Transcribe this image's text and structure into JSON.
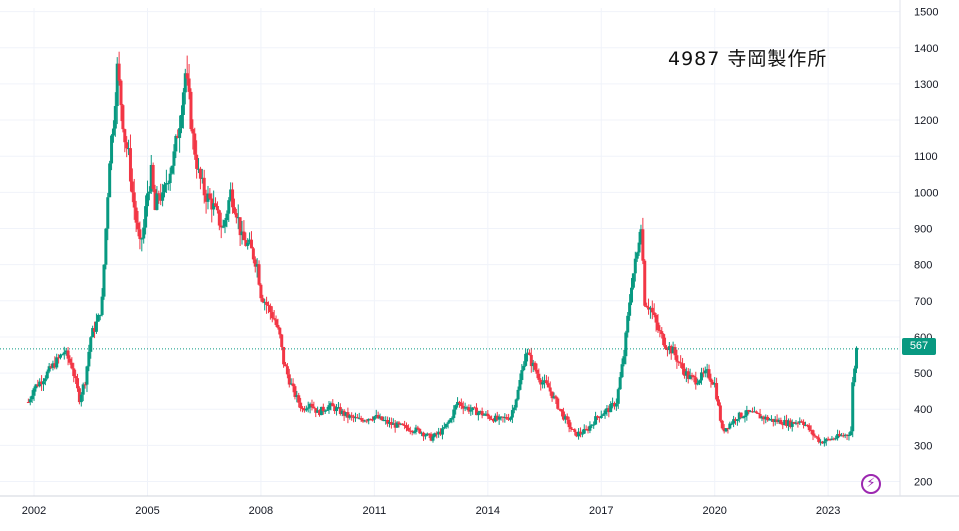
{
  "title": "4987  寺岡製作所",
  "colors": {
    "up": "#089981",
    "down": "#f23645",
    "grid": "#f0f3fa",
    "price_line": "#089981",
    "axis_text": "#131722"
  },
  "last_price_label": "567",
  "icon": "lightning-bolt-icon",
  "chart_data": {
    "type": "candlestick",
    "title": "4987  寺岡製作所",
    "y_ticks": [
      200,
      300,
      400,
      500,
      600,
      700,
      800,
      900,
      1000,
      1100,
      1200,
      1300,
      1400,
      1500
    ],
    "x_ticks": [
      "2002",
      "2005",
      "2008",
      "2011",
      "2014",
      "2017",
      "2020",
      "2023"
    ],
    "ylim": [
      160,
      1510
    ],
    "xlim": [
      2001.1,
      2024.9
    ],
    "last_price": 567,
    "grid": true,
    "price_path": [
      [
        2001.85,
        420
      ],
      [
        2002.0,
        460
      ],
      [
        2002.2,
        480
      ],
      [
        2002.5,
        520
      ],
      [
        2002.8,
        560
      ],
      [
        2003.0,
        520
      ],
      [
        2003.2,
        430
      ],
      [
        2003.35,
        480
      ],
      [
        2003.5,
        600
      ],
      [
        2003.7,
        650
      ],
      [
        2003.8,
        700
      ],
      [
        2003.9,
        900
      ],
      [
        2004.0,
        1100
      ],
      [
        2004.1,
        1200
      ],
      [
        2004.2,
        1340
      ],
      [
        2004.3,
        1250
      ],
      [
        2004.4,
        1150
      ],
      [
        2004.5,
        1100
      ],
      [
        2004.6,
        1000
      ],
      [
        2004.7,
        920
      ],
      [
        2004.8,
        850
      ],
      [
        2004.9,
        900
      ],
      [
        2005.0,
        1000
      ],
      [
        2005.1,
        1050
      ],
      [
        2005.2,
        950
      ],
      [
        2005.3,
        1000
      ],
      [
        2005.4,
        980
      ],
      [
        2005.5,
        1030
      ],
      [
        2005.7,
        1100
      ],
      [
        2005.85,
        1200
      ],
      [
        2006.0,
        1330
      ],
      [
        2006.1,
        1250
      ],
      [
        2006.2,
        1150
      ],
      [
        2006.35,
        1050
      ],
      [
        2006.5,
        1000
      ],
      [
        2006.7,
        970
      ],
      [
        2006.9,
        920
      ],
      [
        2007.0,
        900
      ],
      [
        2007.2,
        1000
      ],
      [
        2007.35,
        950
      ],
      [
        2007.5,
        870
      ],
      [
        2007.7,
        850
      ],
      [
        2007.9,
        800
      ],
      [
        2008.0,
        720
      ],
      [
        2008.2,
        680
      ],
      [
        2008.35,
        650
      ],
      [
        2008.5,
        600
      ],
      [
        2008.6,
        530
      ],
      [
        2008.75,
        480
      ],
      [
        2008.9,
        440
      ],
      [
        2009.1,
        400
      ],
      [
        2009.3,
        420
      ],
      [
        2009.5,
        390
      ],
      [
        2009.8,
        410
      ],
      [
        2010.0,
        400
      ],
      [
        2010.3,
        380
      ],
      [
        2010.6,
        370
      ],
      [
        2011.0,
        380
      ],
      [
        2011.4,
        360
      ],
      [
        2011.8,
        350
      ],
      [
        2012.2,
        340
      ],
      [
        2012.5,
        320
      ],
      [
        2012.8,
        340
      ],
      [
        2013.0,
        370
      ],
      [
        2013.2,
        420
      ],
      [
        2013.5,
        400
      ],
      [
        2013.8,
        390
      ],
      [
        2014.0,
        380
      ],
      [
        2014.3,
        370
      ],
      [
        2014.6,
        380
      ],
      [
        2014.8,
        450
      ],
      [
        2015.0,
        560
      ],
      [
        2015.2,
        520
      ],
      [
        2015.4,
        480
      ],
      [
        2015.6,
        460
      ],
      [
        2015.8,
        420
      ],
      [
        2016.0,
        380
      ],
      [
        2016.3,
        330
      ],
      [
        2016.6,
        340
      ],
      [
        2016.9,
        380
      ],
      [
        2017.2,
        400
      ],
      [
        2017.4,
        420
      ],
      [
        2017.6,
        550
      ],
      [
        2017.8,
        750
      ],
      [
        2017.95,
        830
      ],
      [
        2018.05,
        920
      ],
      [
        2018.15,
        700
      ],
      [
        2018.3,
        680
      ],
      [
        2018.5,
        620
      ],
      [
        2018.7,
        580
      ],
      [
        2018.9,
        560
      ],
      [
        2019.1,
        520
      ],
      [
        2019.3,
        490
      ],
      [
        2019.5,
        480
      ],
      [
        2019.8,
        500
      ],
      [
        2020.0,
        470
      ],
      [
        2020.2,
        340
      ],
      [
        2020.4,
        360
      ],
      [
        2020.6,
        380
      ],
      [
        2020.9,
        390
      ],
      [
        2021.2,
        380
      ],
      [
        2021.5,
        370
      ],
      [
        2021.8,
        365
      ],
      [
        2022.0,
        360
      ],
      [
        2022.3,
        370
      ],
      [
        2022.6,
        330
      ],
      [
        2022.8,
        310
      ],
      [
        2023.0,
        315
      ],
      [
        2023.3,
        325
      ],
      [
        2023.5,
        330
      ],
      [
        2023.6,
        340
      ],
      [
        2023.65,
        470
      ],
      [
        2023.75,
        567
      ]
    ]
  }
}
